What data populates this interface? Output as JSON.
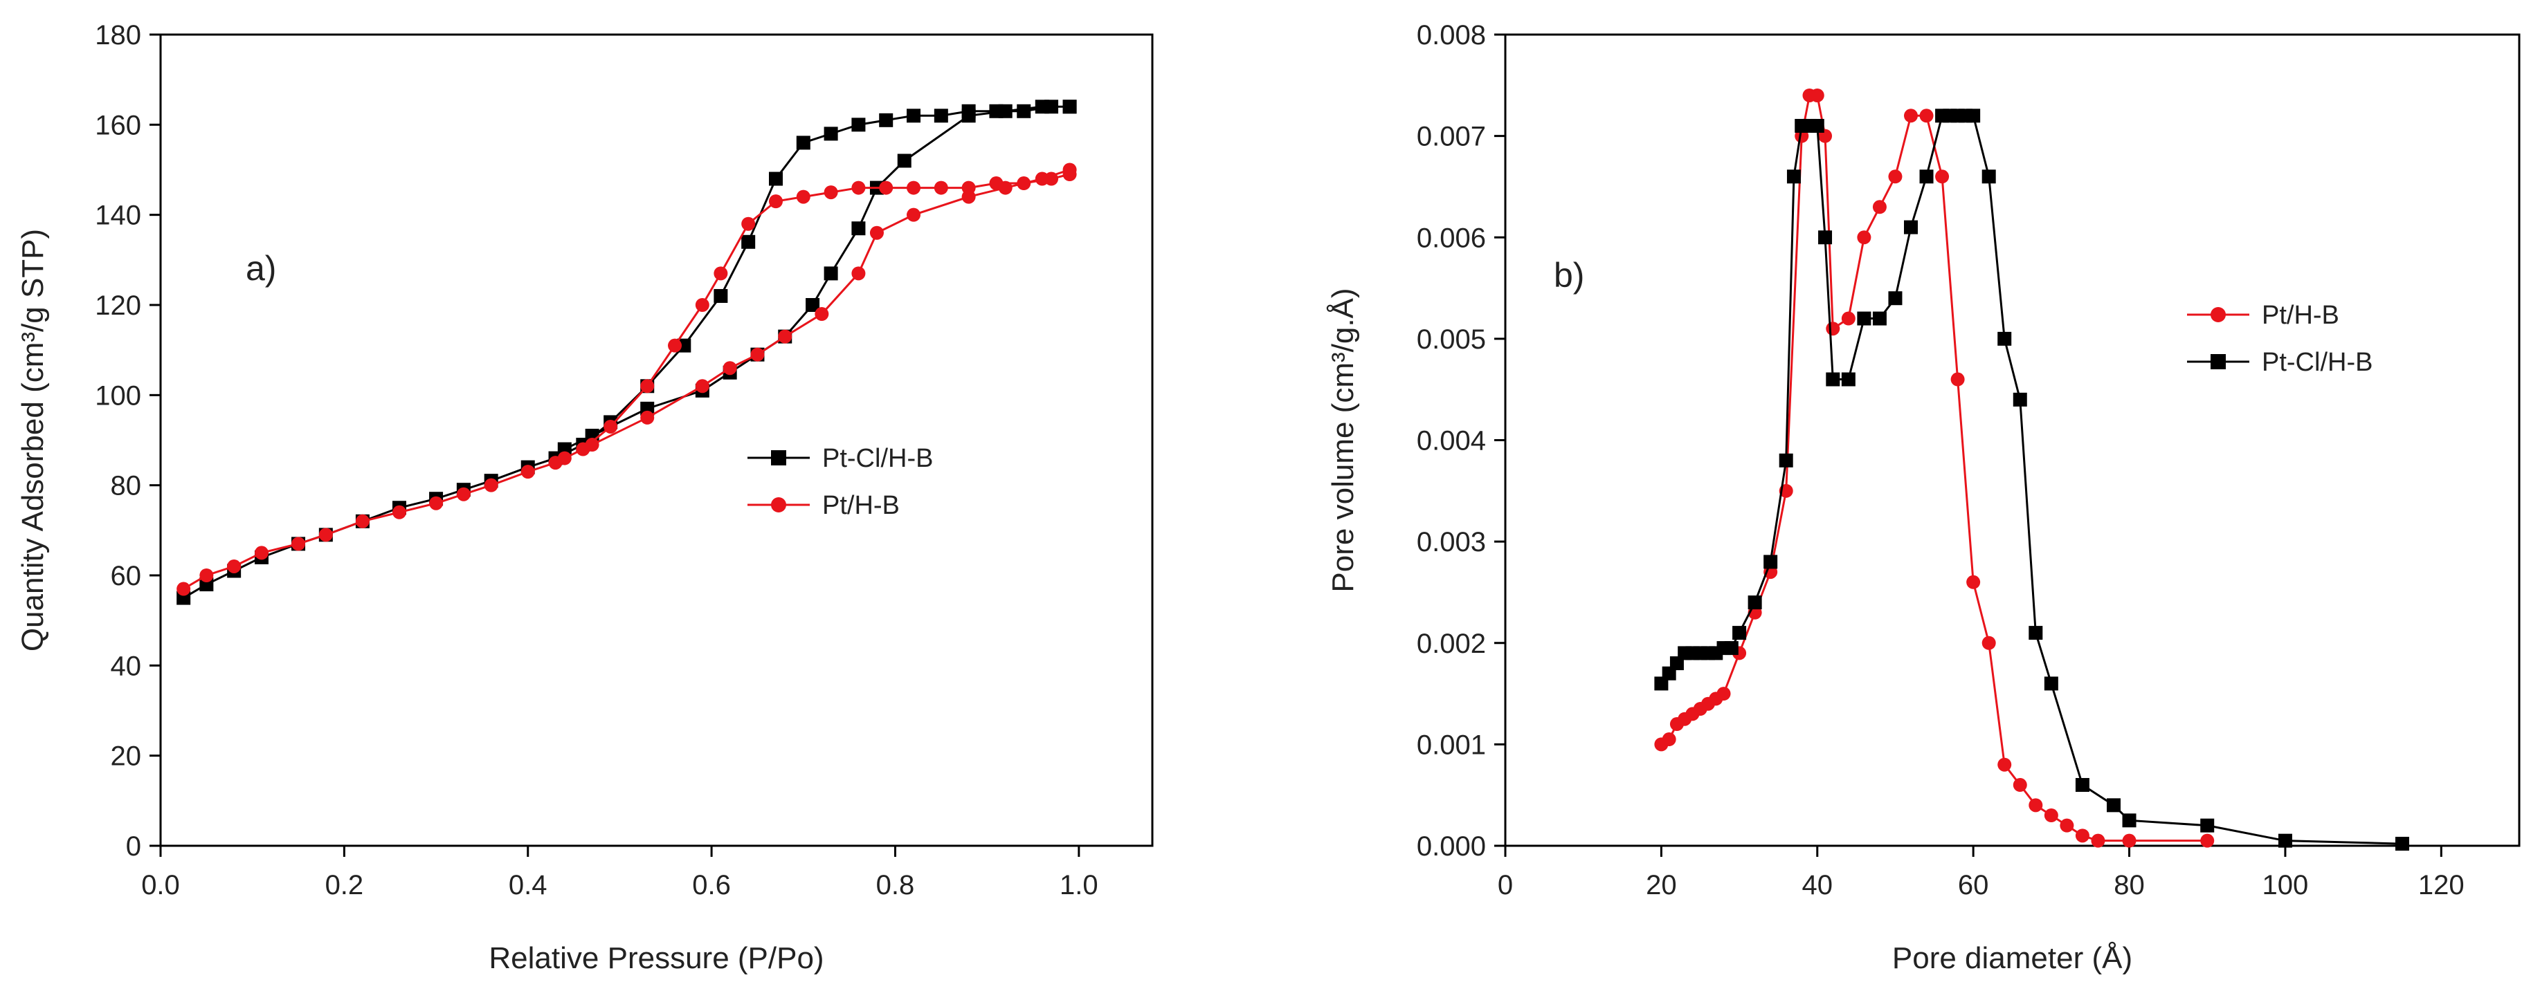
{
  "chart_data": [
    {
      "type": "scatter",
      "panel_label": "a)",
      "xlabel": "Relative Pressure (P/Po)",
      "ylabel": "Quantity Adsorbed (cm³/g STP)",
      "xlim": [
        0.0,
        1.08
      ],
      "ylim": [
        0,
        180
      ],
      "xticks": [
        "0.0",
        "0.2",
        "0.4",
        "0.6",
        "0.8",
        "1.0"
      ],
      "yticks": [
        "0",
        "20",
        "40",
        "60",
        "80",
        "100",
        "120",
        "140",
        "160",
        "180"
      ],
      "legend": "middle-right",
      "series": [
        {
          "name": "Pt-Cl/H-B",
          "color": "#000000",
          "marker": "square",
          "x": [
            0.025,
            0.05,
            0.08,
            0.11,
            0.15,
            0.18,
            0.22,
            0.26,
            0.3,
            0.33,
            0.36,
            0.4,
            0.43,
            0.46,
            0.49,
            0.53,
            0.57,
            0.61,
            0.64,
            0.67,
            0.7,
            0.73,
            0.76,
            0.79,
            0.82,
            0.85,
            0.88,
            0.91,
            0.94,
            0.97,
            0.99,
            0.99,
            0.96,
            0.92,
            0.88,
            0.81,
            0.78,
            0.76,
            0.73,
            0.71,
            0.68,
            0.65,
            0.62,
            0.59,
            0.53,
            0.47,
            0.44
          ],
          "y": [
            55,
            58,
            61,
            64,
            67,
            69,
            72,
            75,
            77,
            79,
            81,
            84,
            86,
            89,
            94,
            102,
            111,
            122,
            134,
            148,
            156,
            158,
            160,
            161,
            162,
            162,
            163,
            163,
            163,
            164,
            164,
            164,
            164,
            163,
            162,
            152,
            146,
            137,
            127,
            120,
            113,
            109,
            105,
            101,
            97,
            91,
            88
          ]
        },
        {
          "name": "Pt/H-B",
          "color": "#e8141b",
          "marker": "circle",
          "x": [
            0.025,
            0.05,
            0.08,
            0.11,
            0.15,
            0.18,
            0.22,
            0.26,
            0.3,
            0.33,
            0.36,
            0.4,
            0.43,
            0.46,
            0.49,
            0.53,
            0.56,
            0.59,
            0.61,
            0.64,
            0.67,
            0.7,
            0.73,
            0.76,
            0.79,
            0.82,
            0.85,
            0.88,
            0.91,
            0.94,
            0.97,
            0.99,
            0.99,
            0.96,
            0.92,
            0.88,
            0.82,
            0.78,
            0.76,
            0.72,
            0.68,
            0.65,
            0.62,
            0.59,
            0.53,
            0.47,
            0.44
          ],
          "y": [
            57,
            60,
            62,
            65,
            67,
            69,
            72,
            74,
            76,
            78,
            80,
            83,
            85,
            88,
            93,
            102,
            111,
            120,
            127,
            138,
            143,
            144,
            145,
            146,
            146,
            146,
            146,
            146,
            147,
            147,
            148,
            149,
            150,
            148,
            146,
            144,
            140,
            136,
            127,
            118,
            113,
            109,
            106,
            102,
            95,
            89,
            86
          ]
        }
      ]
    },
    {
      "type": "line",
      "panel_label": "b)",
      "xlabel": "Pore diameter (Å)",
      "ylabel": "Pore volume (cm³/g.Å)",
      "xlim": [
        0,
        130
      ],
      "ylim": [
        0,
        0.008
      ],
      "xticks": [
        "0",
        "20",
        "40",
        "60",
        "80",
        "100",
        "120"
      ],
      "yticks": [
        "0.000",
        "0.001",
        "0.002",
        "0.003",
        "0.004",
        "0.005",
        "0.006",
        "0.007",
        "0.008"
      ],
      "legend": "middle-right",
      "series": [
        {
          "name": "Pt/H-B",
          "color": "#e8141b",
          "marker": "circle",
          "x": [
            20,
            21,
            22,
            23,
            24,
            25,
            26,
            27,
            28,
            30,
            32,
            34,
            36,
            38,
            39,
            40,
            41,
            42,
            44,
            46,
            48,
            50,
            52,
            54,
            56,
            58,
            60,
            62,
            64,
            66,
            68,
            70,
            72,
            74,
            76,
            80,
            90
          ],
          "y": [
            0.001,
            0.00105,
            0.0012,
            0.00125,
            0.0013,
            0.00135,
            0.0014,
            0.00145,
            0.0015,
            0.0019,
            0.0023,
            0.0027,
            0.0035,
            0.007,
            0.0074,
            0.0074,
            0.007,
            0.0051,
            0.0052,
            0.006,
            0.0063,
            0.0066,
            0.0072,
            0.0072,
            0.0066,
            0.0046,
            0.0026,
            0.002,
            0.0008,
            0.0006,
            0.0004,
            0.0003,
            0.0002,
            0.0001,
            5e-05,
            5e-05,
            5e-05
          ]
        },
        {
          "name": "Pt-Cl/H-B",
          "color": "#000000",
          "marker": "square",
          "x": [
            20,
            21,
            22,
            23,
            24,
            25,
            26,
            27,
            28,
            29,
            30,
            32,
            34,
            36,
            37,
            38,
            39,
            40,
            41,
            42,
            44,
            46,
            48,
            50,
            52,
            54,
            56,
            57,
            58,
            59,
            60,
            62,
            64,
            66,
            68,
            70,
            74,
            78,
            80,
            90,
            100,
            115
          ],
          "y": [
            0.0016,
            0.0017,
            0.0018,
            0.0019,
            0.0019,
            0.0019,
            0.0019,
            0.0019,
            0.00195,
            0.00195,
            0.0021,
            0.0024,
            0.0028,
            0.0038,
            0.0066,
            0.0071,
            0.0071,
            0.0071,
            0.006,
            0.0046,
            0.0046,
            0.0052,
            0.0052,
            0.0054,
            0.0061,
            0.0066,
            0.0072,
            0.0072,
            0.0072,
            0.0072,
            0.0072,
            0.0066,
            0.005,
            0.0044,
            0.0021,
            0.0016,
            0.0006,
            0.0004,
            0.00025,
            0.0002,
            5e-05,
            2e-05
          ]
        }
      ]
    }
  ]
}
